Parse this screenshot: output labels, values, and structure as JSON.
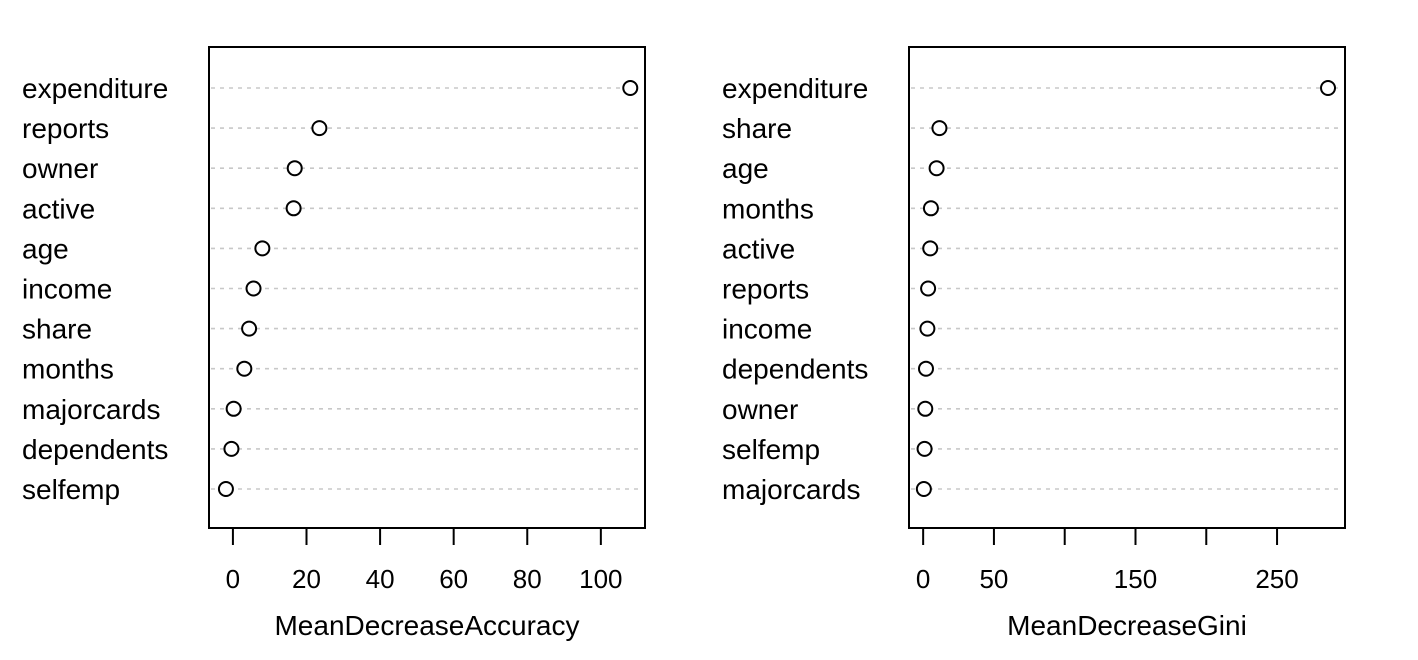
{
  "chart_data": [
    {
      "type": "scatter",
      "title": "",
      "xlabel": "MeanDecreaseAccuracy",
      "ylabel": "",
      "xlim": [
        -6.5,
        112
      ],
      "xticks": [
        0,
        20,
        40,
        60,
        80,
        100
      ],
      "xtick_labels": [
        "0",
        "20",
        "40",
        "60",
        "80",
        "100"
      ],
      "grid": "dotted horizontal",
      "categories": [
        "expenditure",
        "reports",
        "owner",
        "active",
        "age",
        "income",
        "share",
        "months",
        "majorcards",
        "dependents",
        "selfemp"
      ],
      "values": [
        108,
        23.5,
        16.8,
        16.5,
        8,
        5.6,
        4.4,
        3.1,
        0.2,
        -0.4,
        -1.9
      ]
    },
    {
      "type": "scatter",
      "title": "",
      "xlabel": "MeanDecreaseGini",
      "ylabel": "",
      "xlim": [
        -10,
        298
      ],
      "xticks": [
        0,
        50,
        100,
        150,
        200,
        250
      ],
      "xtick_labels": [
        "0",
        "50",
        "",
        "150",
        "",
        "250"
      ],
      "grid": "dotted horizontal",
      "categories": [
        "expenditure",
        "share",
        "age",
        "months",
        "active",
        "reports",
        "income",
        "dependents",
        "owner",
        "selfemp",
        "majorcards"
      ],
      "values": [
        286,
        11.5,
        9.5,
        5.5,
        5,
        3.5,
        3,
        2,
        1.5,
        1,
        0.5
      ]
    }
  ]
}
